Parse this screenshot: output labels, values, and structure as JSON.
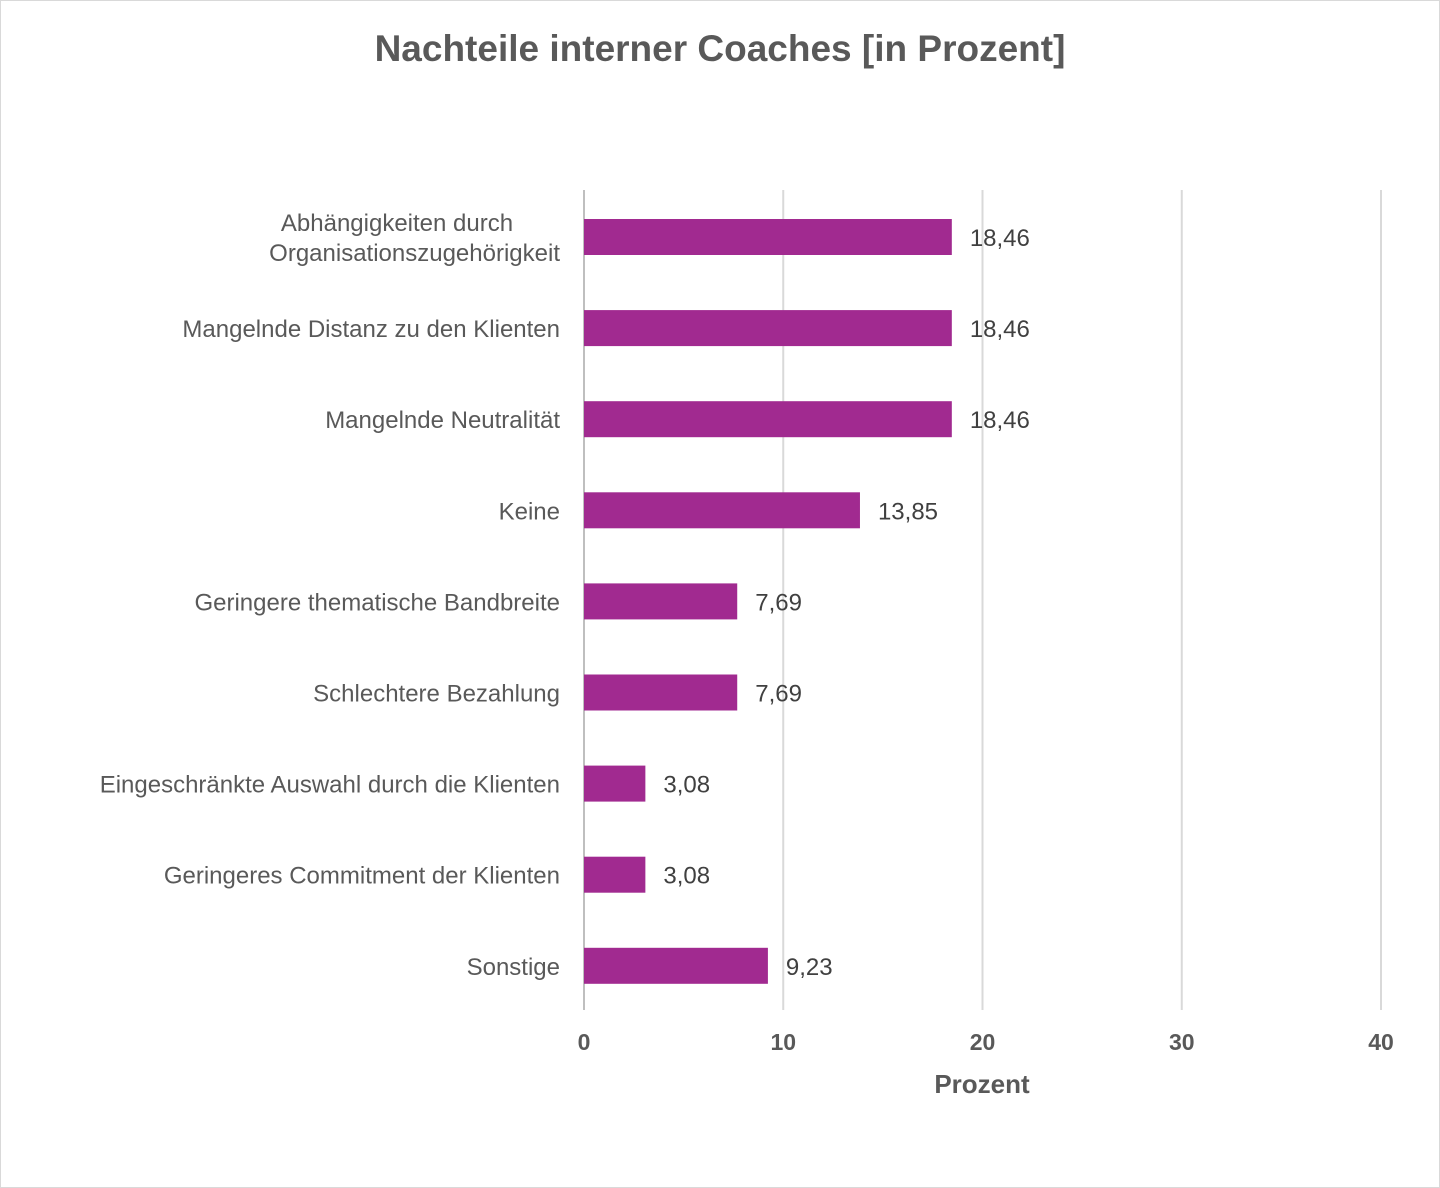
{
  "chart_data": {
    "type": "bar",
    "orientation": "horizontal",
    "title": "Nachteile interner Coaches [in Prozent]",
    "xlabel": "Prozent",
    "ylabel": "",
    "categories": [
      [
        "Abhängigkeiten durch",
        "Organisationszugehörigkeit"
      ],
      [
        "Mangelnde Distanz zu den Klienten"
      ],
      [
        "Mangelnde Neutralität"
      ],
      [
        "Keine"
      ],
      [
        "Geringere thematische Bandbreite"
      ],
      [
        "Schlechtere Bezahlung"
      ],
      [
        "Eingeschränkte Auswahl durch die Klienten"
      ],
      [
        "Geringeres Commitment der Klienten"
      ],
      [
        "Sonstige"
      ]
    ],
    "values": [
      18.46,
      18.46,
      18.46,
      13.85,
      7.69,
      7.69,
      3.08,
      3.08,
      9.23
    ],
    "value_labels": [
      "18,46",
      "18,46",
      "18,46",
      "13,85",
      "7,69",
      "7,69",
      "3,08",
      "3,08",
      "9,23"
    ],
    "xlim": [
      0,
      40
    ],
    "xticks": [
      0,
      10,
      20,
      30,
      40
    ],
    "grid": "vertical",
    "legend": "none",
    "colors": {
      "bar": "#a12a90",
      "grid": "#d9d9d9"
    }
  }
}
